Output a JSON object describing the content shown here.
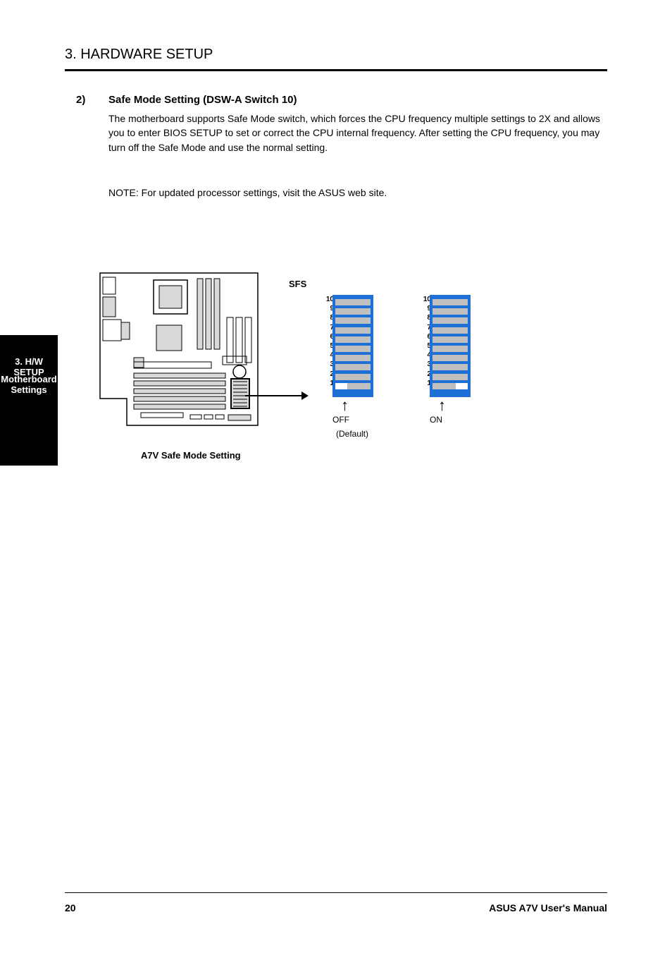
{
  "header": {
    "title": "3. HARDWARE SETUP"
  },
  "section": {
    "number": "2)",
    "title": "Safe Mode Setting (DSW-A Switch 10)",
    "para1": "The motherboard supports Safe Mode switch, which forces the CPU frequency multiple settings to 2X and allows you to enter BIOS SETUP to set or correct the CPU internal frequency. After setting the CPU frequency, you may turn off the Safe Mode and use the normal setting.",
    "para2": "NOTE: For updated processor settings, visit the ASUS web site."
  },
  "sidebar": {
    "line1": "3. H/W SETUP",
    "line2": "Motherboard Settings"
  },
  "dip": {
    "sfs_label": "SFS",
    "left": {
      "label": "OFF",
      "default": "(Default)",
      "knob_pos": "left",
      "arrow": "↑"
    },
    "right": {
      "label": "ON",
      "knob_pos": "right",
      "arrow": "↑"
    },
    "rows": [
      "10",
      "9",
      "8",
      "7",
      "6",
      "5",
      "4",
      "3",
      "2",
      "1"
    ],
    "colors": {
      "body": "#1e6fd6",
      "track": "#bfbfbf",
      "knob": "#ffffff",
      "text": "#000000"
    },
    "row_spacing": 13.2
  },
  "caption": "A7V Safe Mode Setting",
  "footer": {
    "page": "20",
    "title": "ASUS A7V User's Manual"
  }
}
